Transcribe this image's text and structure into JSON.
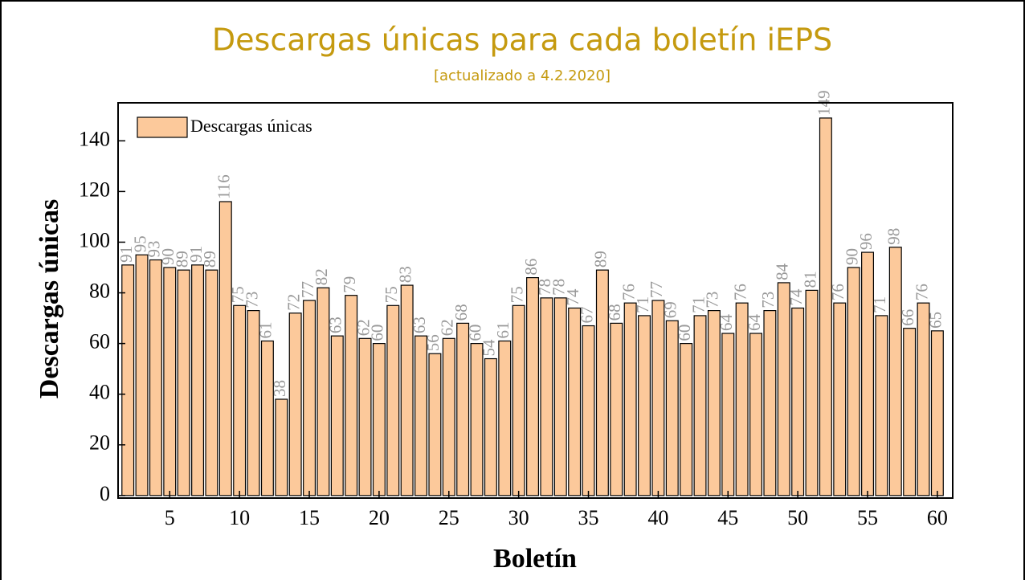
{
  "chart_data": {
    "type": "bar",
    "title": "Descargas únicas para cada boletín iEPS",
    "subtitle": "[actualizado a 4.2.2020]",
    "x_label": "Boletín",
    "y_label": "Descargas únicas",
    "x": [
      2,
      3,
      4,
      5,
      6,
      7,
      8,
      9,
      10,
      11,
      12,
      13,
      14,
      15,
      16,
      17,
      18,
      19,
      20,
      21,
      22,
      23,
      24,
      25,
      26,
      27,
      28,
      29,
      30,
      31,
      32,
      33,
      34,
      35,
      36,
      37,
      38,
      39,
      40,
      41,
      42,
      43,
      44,
      45,
      46,
      47,
      48,
      49,
      50,
      51,
      52,
      53,
      54,
      55,
      56,
      57,
      58,
      59,
      60
    ],
    "series": [
      {
        "name": "Descargas únicas",
        "color": "#fcc99b",
        "values": [
          91,
          95,
          93,
          90,
          89,
          91,
          89,
          116,
          75,
          73,
          61,
          38,
          72,
          77,
          82,
          63,
          79,
          62,
          60,
          75,
          83,
          63,
          56,
          62,
          68,
          60,
          54,
          61,
          75,
          86,
          78,
          78,
          74,
          67,
          89,
          68,
          76,
          71,
          77,
          69,
          60,
          71,
          73,
          64,
          76,
          64,
          73,
          84,
          74,
          81,
          149,
          76,
          90,
          96,
          71,
          98,
          66,
          76,
          65
        ]
      }
    ],
    "xlim": [
      1.3,
      61.1
    ],
    "xticks": [
      5,
      10,
      15,
      20,
      25,
      30,
      35,
      40,
      45,
      50,
      55,
      60
    ],
    "ylim": [
      -1,
      155
    ],
    "yticks": [
      0,
      20,
      40,
      60,
      80,
      100,
      120,
      140
    ],
    "legend": "upper left"
  }
}
